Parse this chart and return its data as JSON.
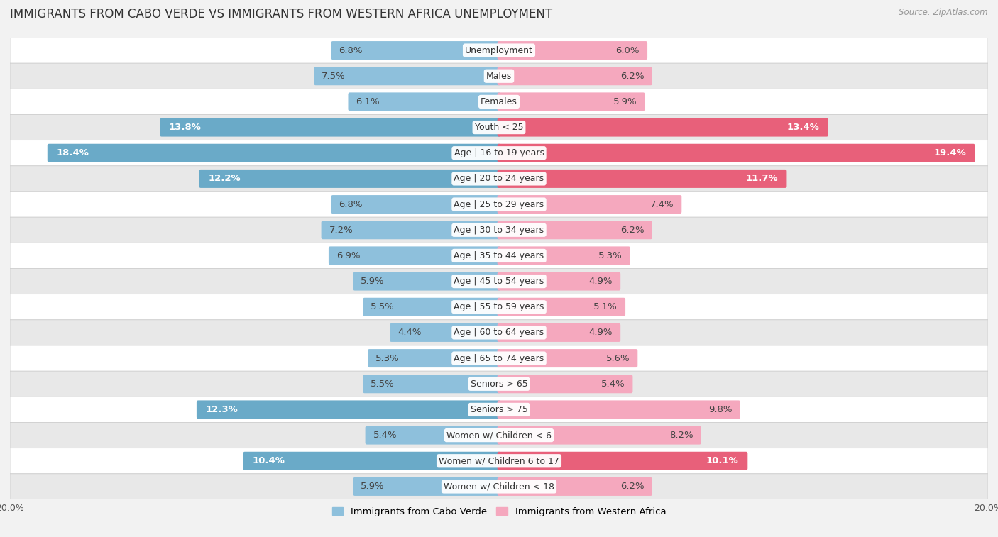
{
  "title": "IMMIGRANTS FROM CABO VERDE VS IMMIGRANTS FROM WESTERN AFRICA UNEMPLOYMENT",
  "source": "Source: ZipAtlas.com",
  "categories": [
    "Unemployment",
    "Males",
    "Females",
    "Youth < 25",
    "Age | 16 to 19 years",
    "Age | 20 to 24 years",
    "Age | 25 to 29 years",
    "Age | 30 to 34 years",
    "Age | 35 to 44 years",
    "Age | 45 to 54 years",
    "Age | 55 to 59 years",
    "Age | 60 to 64 years",
    "Age | 65 to 74 years",
    "Seniors > 65",
    "Seniors > 75",
    "Women w/ Children < 6",
    "Women w/ Children 6 to 17",
    "Women w/ Children < 18"
  ],
  "cabo_verde": [
    6.8,
    7.5,
    6.1,
    13.8,
    18.4,
    12.2,
    6.8,
    7.2,
    6.9,
    5.9,
    5.5,
    4.4,
    5.3,
    5.5,
    12.3,
    5.4,
    10.4,
    5.9
  ],
  "western_africa": [
    6.0,
    6.2,
    5.9,
    13.4,
    19.4,
    11.7,
    7.4,
    6.2,
    5.3,
    4.9,
    5.1,
    4.9,
    5.6,
    5.4,
    9.8,
    8.2,
    10.1,
    6.2
  ],
  "cabo_verde_color": "#8ec0dc",
  "western_africa_color": "#f5a8be",
  "cabo_verde_highlight_color": "#6aaac8",
  "western_africa_highlight_color": "#e8607a",
  "highlight_threshold": 10.0,
  "background_color": "#f2f2f2",
  "row_color_odd": "#ffffff",
  "row_color_even": "#e8e8e8",
  "max_value": 20.0,
  "legend_cabo": "Immigrants from Cabo Verde",
  "legend_western": "Immigrants from Western Africa",
  "label_fontsize": 9.5,
  "title_fontsize": 12,
  "cat_fontsize": 9.0
}
